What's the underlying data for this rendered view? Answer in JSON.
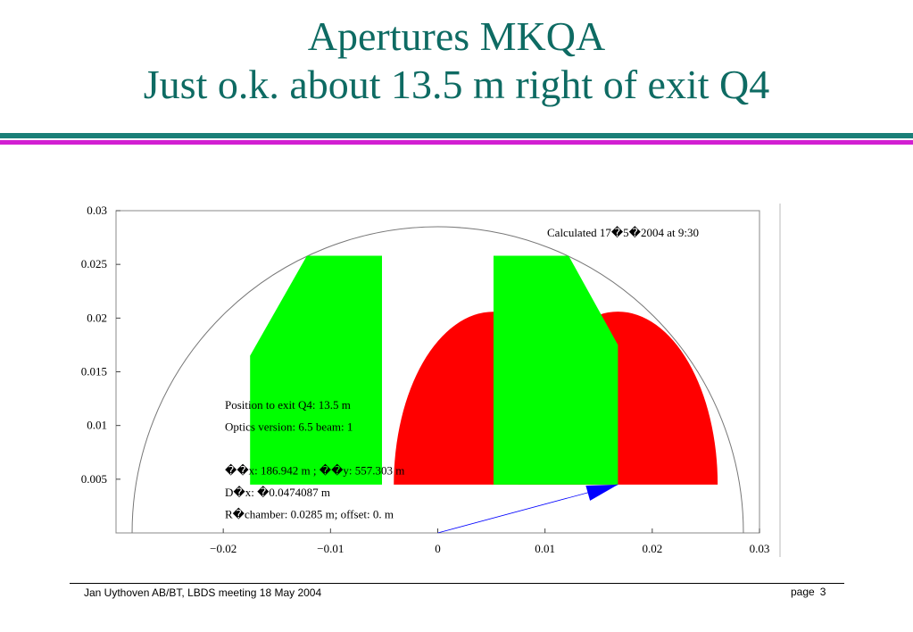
{
  "slide": {
    "title_line1": "Apertures MKQA",
    "title_line2": "Just o.k. about 13.5 m right of exit Q4"
  },
  "footer": {
    "left": "Jan Uythoven AB/BT, LBDS meeting 18 May 2004",
    "page_label": "page",
    "page_number": "3"
  },
  "colors": {
    "title": "#0e6b63",
    "rule_teal": "#1a7f78",
    "rule_magenta": "#d21fd2",
    "green": "#00ff00",
    "red": "#ff0000",
    "blue": "#0000ff"
  },
  "chart_data": {
    "type": "scatter",
    "xlim": [
      -0.03,
      0.03
    ],
    "ylim": [
      0,
      0.03
    ],
    "x_ticks": [
      -0.02,
      -0.01,
      0,
      0.01,
      0.02,
      0.03
    ],
    "x_tick_labels": [
      "−0.02",
      "−0.01",
      "0",
      "0.01",
      "0.02",
      "0.03"
    ],
    "y_ticks": [
      0.005,
      0.01,
      0.015,
      0.02,
      0.025,
      0.03
    ],
    "y_tick_labels": [
      "0.005",
      "0.01",
      "0.015",
      "0.02",
      "0.025",
      "0.03"
    ],
    "chamber_radius": 0.0285,
    "green_polygons": [
      [
        [
          -0.0175,
          0.0045
        ],
        [
          -0.0175,
          0.0165
        ],
        [
          -0.0122,
          0.0258
        ],
        [
          -0.0052,
          0.0258
        ],
        [
          -0.0052,
          0.0045
        ]
      ],
      [
        [
          0.0052,
          0.0045
        ],
        [
          0.0052,
          0.0258
        ],
        [
          0.0122,
          0.0258
        ],
        [
          0.0168,
          0.0175
        ],
        [
          0.0168,
          0.0045
        ]
      ]
    ],
    "red_half_ellipses": [
      {
        "cx": 0.0052,
        "cy": 0.0045,
        "rx": 0.0093,
        "ry": 0.0161
      },
      {
        "cx": 0.0168,
        "cy": 0.0045,
        "rx": 0.0093,
        "ry": 0.0161
      }
    ],
    "beam_line": [
      [
        0,
        0
      ],
      [
        0.0168,
        0.0045
      ]
    ],
    "arrowhead": [
      [
        0.0168,
        0.0045
      ],
      [
        0.0138,
        0.0044
      ],
      [
        0.0142,
        0.003
      ]
    ],
    "annotations": {
      "calculated": "Calculated 17�5�2004 at 9:30",
      "info_lines": [
        "Position to exit Q4:  13.5 m",
        "Optics version:  6.5   beam: 1",
        "",
        "��x:  186.942 m ; ��y:  557.303 m",
        "D�x:  �0.0474087 m",
        "R�chamber:  0.0285 m; offset: 0. m"
      ]
    }
  }
}
